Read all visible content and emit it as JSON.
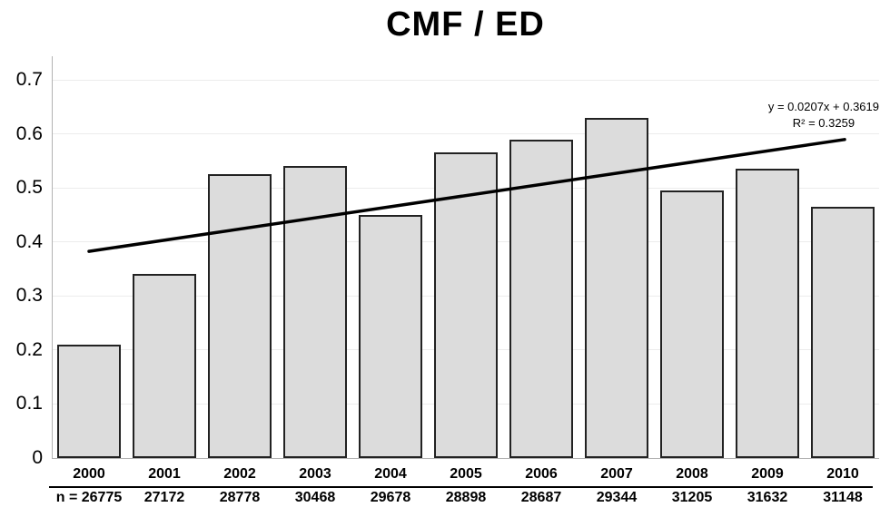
{
  "chart_data": {
    "type": "bar",
    "title": "CMF / ED",
    "xlabel": "",
    "ylabel": "",
    "categories": [
      "2000",
      "2001",
      "2002",
      "2003",
      "2004",
      "2005",
      "2006",
      "2007",
      "2008",
      "2009",
      "2010"
    ],
    "values": [
      0.21,
      0.34,
      0.525,
      0.54,
      0.45,
      0.565,
      0.59,
      0.63,
      0.495,
      0.535,
      0.465
    ],
    "n_row": {
      "prefix": "n = ",
      "values": [
        "26775",
        "27172",
        "28778",
        "30468",
        "29678",
        "28898",
        "28687",
        "29344",
        "31205",
        "31632",
        "31148"
      ]
    },
    "ytick_labels": [
      "0",
      "0.1",
      "0.2",
      "0.3",
      "0.4",
      "0.5",
      "0.6",
      "0.7"
    ],
    "ytick_values": [
      0,
      0.1,
      0.2,
      0.3,
      0.4,
      0.5,
      0.6,
      0.7
    ],
    "ylim": [
      0,
      0.7
    ],
    "grid": true,
    "legend_position": "none",
    "trendline": {
      "equation_label": "y = 0.0207x + 0.3619",
      "r2_label": "R² = 0.3259",
      "slope": 0.0207,
      "intercept": 0.3619
    },
    "colors": {
      "bar_fill": "#dcdcdc",
      "bar_border": "#222222",
      "trendline": "#000000",
      "gridline": "#ececec",
      "axis": "#b3b3b3",
      "text": "#000000"
    }
  }
}
